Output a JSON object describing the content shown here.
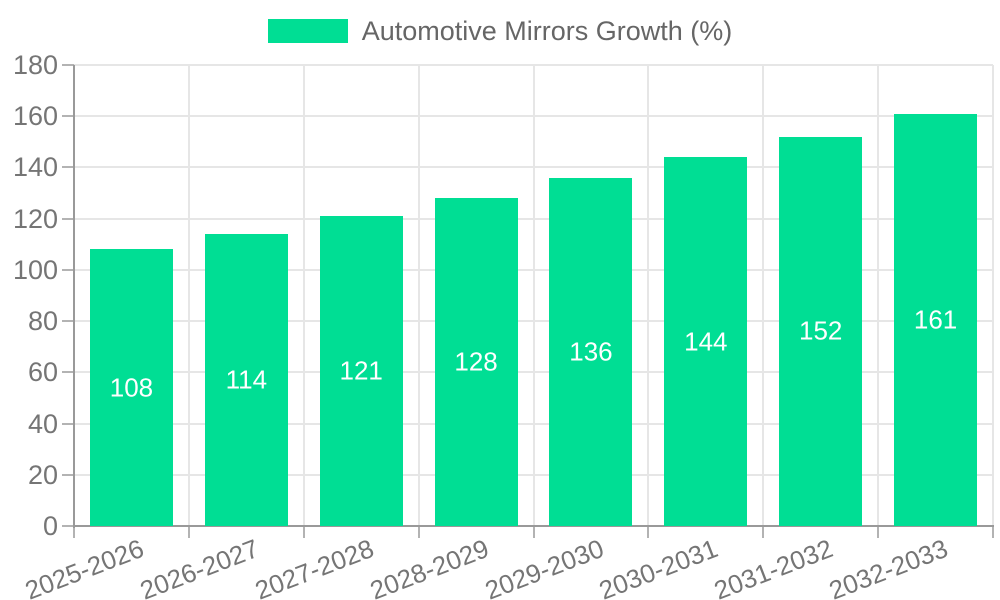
{
  "legend": {
    "label": "Automotive Mirrors Growth (%)"
  },
  "chart_data": {
    "type": "bar",
    "title": "Automotive Mirrors Growth (%)",
    "categories": [
      "2025-2026",
      "2026-2027",
      "2027-2028",
      "2028-2029",
      "2029-2030",
      "2030-2031",
      "2031-2032",
      "2032-2033"
    ],
    "series": [
      {
        "name": "Automotive Mirrors Growth (%)",
        "values": [
          108,
          114,
          121,
          128,
          136,
          144,
          152,
          161
        ]
      }
    ],
    "values": [
      108,
      114,
      121,
      128,
      136,
      144,
      152,
      161
    ],
    "value_labels": [
      "108",
      "114",
      "121",
      "128",
      "136",
      "144",
      "152",
      "161"
    ],
    "xlabel": "",
    "ylabel": "",
    "ylim": [
      0,
      180
    ],
    "yticks": [
      0,
      20,
      40,
      60,
      80,
      100,
      120,
      140,
      160,
      180
    ],
    "grid": true,
    "legend_position": "top-center",
    "bar_value_label_position": "inside-center",
    "x_label_rotation_deg": -21,
    "colors": {
      "bar": "#00DE94",
      "axis": "#999999",
      "grid": "#e6e6e6",
      "tick": "#b3b3b3",
      "tick_text": "#757575",
      "legend_text": "#666666",
      "value_text": "#ffffff",
      "background": "#ffffff"
    }
  }
}
